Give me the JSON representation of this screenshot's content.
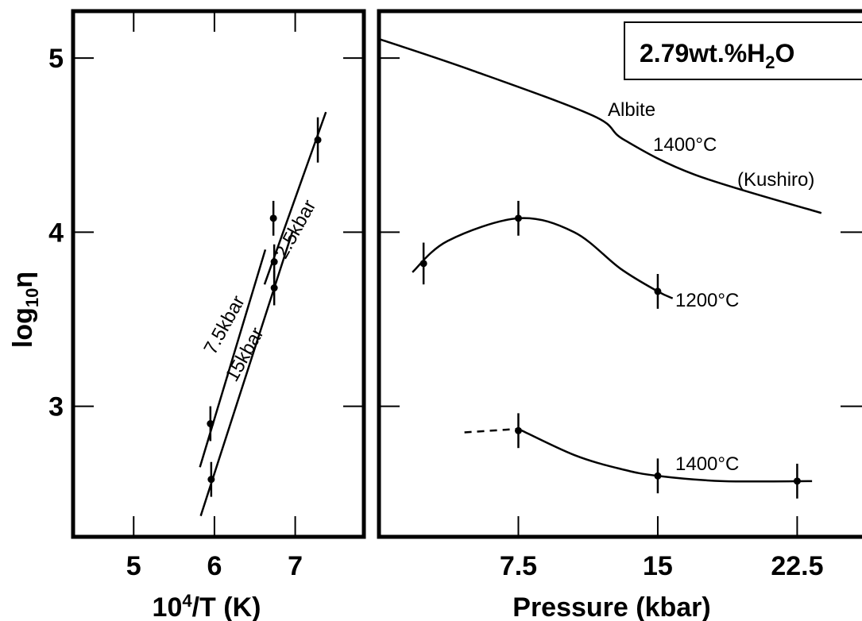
{
  "chart_data": [
    {
      "type": "scatter",
      "xlabel_base": "10",
      "xlabel_sup": "4",
      "xlabel_rest": "/T (K)",
      "ylabel_main": "log",
      "ylabel_sub": "10",
      "ylabel_tail": "η",
      "xlim": [
        4.25,
        7.85
      ],
      "ylim": [
        2.25,
        5.27
      ],
      "xticks": [
        "5",
        "6",
        "7"
      ],
      "yticks": [
        "3",
        "4",
        "5"
      ],
      "series": [
        {
          "name": "7.5kbar",
          "points": [
            {
              "x": 5.95,
              "y": 2.9,
              "err": 0.1
            },
            {
              "x": 6.73,
              "y": 4.08,
              "err": 0.1
            }
          ],
          "line": [
            [
              5.82,
              2.65
            ],
            [
              6.63,
              3.9
            ]
          ]
        },
        {
          "name": "15kbar",
          "points": [
            {
              "x": 5.96,
              "y": 2.58,
              "err": 0.1
            },
            {
              "x": 6.74,
              "y": 3.68,
              "err": 0.1
            }
          ],
          "line": [
            [
              5.83,
              2.37
            ],
            [
              6.97,
              4.01
            ]
          ]
        },
        {
          "name": "2.5kbar",
          "points": [
            {
              "x": 6.74,
              "y": 3.83,
              "err": 0.1
            },
            {
              "x": 7.28,
              "y": 4.53,
              "err": 0.13
            }
          ],
          "line": [
            [
              6.62,
              3.7
            ],
            [
              7.38,
              4.69
            ]
          ]
        }
      ]
    },
    {
      "type": "line",
      "xlabel": "Pressure (kbar)",
      "xlim": [
        0,
        26.5
      ],
      "ylim": [
        2.25,
        5.27
      ],
      "xticks": [
        "7.5",
        "15",
        "22.5"
      ],
      "box_label_main": "2.79wt.%H",
      "box_label_sub": "2",
      "box_label_tail": "O",
      "series": [
        {
          "name": "Albite 1400°C (Kushiro)",
          "label_lines": [
            "Albite",
            "1400°C",
            "(Kushiro)"
          ],
          "points": [
            {
              "x": 0,
              "y": 5.11
            },
            {
              "x": 5,
              "y": 4.93
            },
            {
              "x": 11.5,
              "y": 4.67
            },
            {
              "x": 13.2,
              "y": 4.53
            },
            {
              "x": 17,
              "y": 4.33
            },
            {
              "x": 23.8,
              "y": 4.11
            }
          ]
        },
        {
          "name": "1200°C",
          "label_lines": [
            "1200°C"
          ],
          "points": [
            {
              "x": 2.4,
              "y": 3.82,
              "err": 0.12
            },
            {
              "x": 7.5,
              "y": 4.08,
              "err": 0.1
            },
            {
              "x": 15,
              "y": 3.66,
              "err": 0.1
            }
          ],
          "curve": [
            [
              1.8,
              3.77
            ],
            [
              3.7,
              3.95
            ],
            [
              7.5,
              4.08
            ],
            [
              10.5,
              4.0
            ],
            [
              13,
              3.79
            ],
            [
              15,
              3.66
            ],
            [
              15.8,
              3.62
            ]
          ]
        },
        {
          "name": "1400°C",
          "label_lines": [
            "1400°C"
          ],
          "points": [
            {
              "x": 7.5,
              "y": 2.86,
              "err": 0.1
            },
            {
              "x": 15,
              "y": 2.6,
              "err": 0.1
            },
            {
              "x": 22.5,
              "y": 2.57,
              "err": 0.1
            }
          ],
          "dashed": [
            [
              4.6,
              2.85
            ],
            [
              7.5,
              2.87
            ]
          ],
          "curve": [
            [
              7.5,
              2.87
            ],
            [
              10.5,
              2.72
            ],
            [
              13,
              2.64
            ],
            [
              15,
              2.6
            ],
            [
              18.5,
              2.57
            ],
            [
              23.3,
              2.57
            ]
          ]
        }
      ]
    }
  ]
}
